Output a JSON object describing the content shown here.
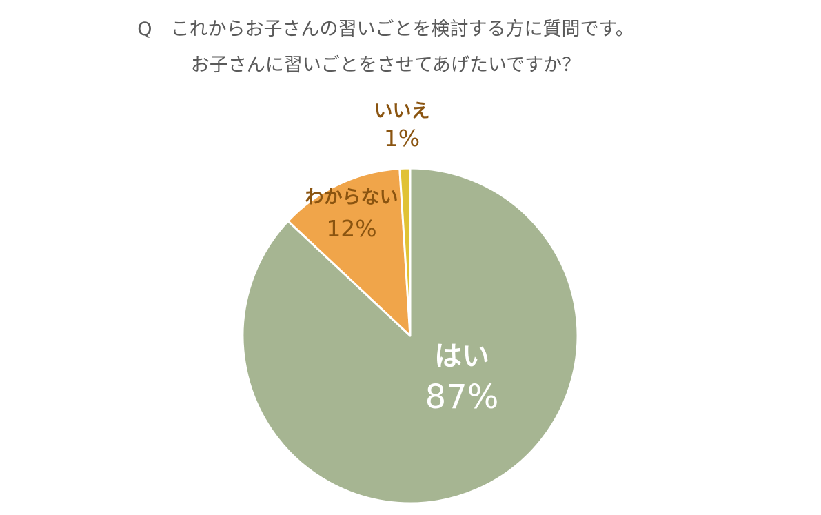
{
  "header": {
    "question_line": "Q　これからお子さんの習いごとを検討する方に質問です。",
    "sub_line": "お子さんに習いごとをさせてあげたいですか？"
  },
  "chart_data": {
    "type": "pie",
    "title": "Q　これからお子さんの習いごとを検討する方に質問です。",
    "subtitle": "お子さんに習いごとをさせてあげたいですか？",
    "start_angle_deg": 0,
    "direction": "clockwise",
    "slices": [
      {
        "label": "はい",
        "value": 87,
        "value_label": "87%",
        "color": "#a6b592",
        "text_color": "#ffffff"
      },
      {
        "label": "わからない",
        "value": 12,
        "value_label": "12%",
        "color": "#f0a54a",
        "text_color": "#8a5410"
      },
      {
        "label": "いいえ",
        "value": 1,
        "value_label": "1%",
        "color": "#e0c235",
        "text_color": "#8a5410"
      }
    ],
    "legend": "none"
  }
}
